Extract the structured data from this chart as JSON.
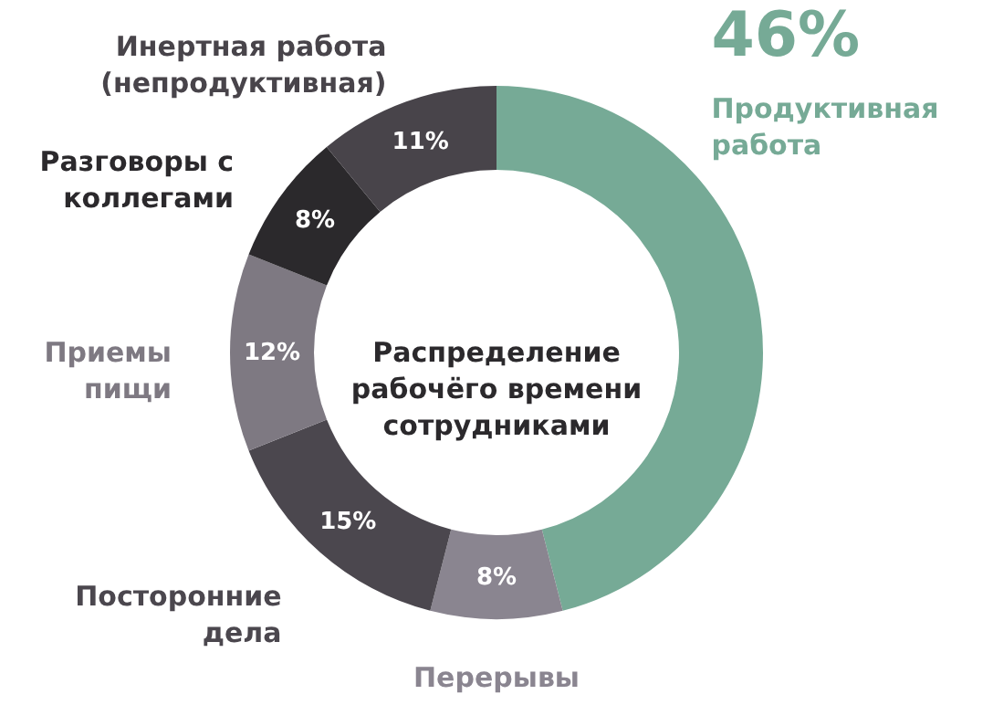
{
  "chart_data": {
    "type": "donut",
    "title": "Распределение рабочёго времени сотрудниками",
    "categories": [
      "Продуктивная работа",
      "Перерывы",
      "Посторонние дела",
      "Приемы пищи",
      "Разговоры с коллегами",
      "Инертная работа (непродуктивная)"
    ],
    "values": [
      46,
      8,
      15,
      12,
      8,
      11
    ],
    "colors": [
      "#76aa96",
      "#8a8590",
      "#4b474e",
      "#7e7982",
      "#2b292c",
      "#48444a"
    ],
    "value_labels": [
      "46%",
      "8%",
      "15%",
      "12%",
      "8%",
      "11%"
    ]
  }
}
